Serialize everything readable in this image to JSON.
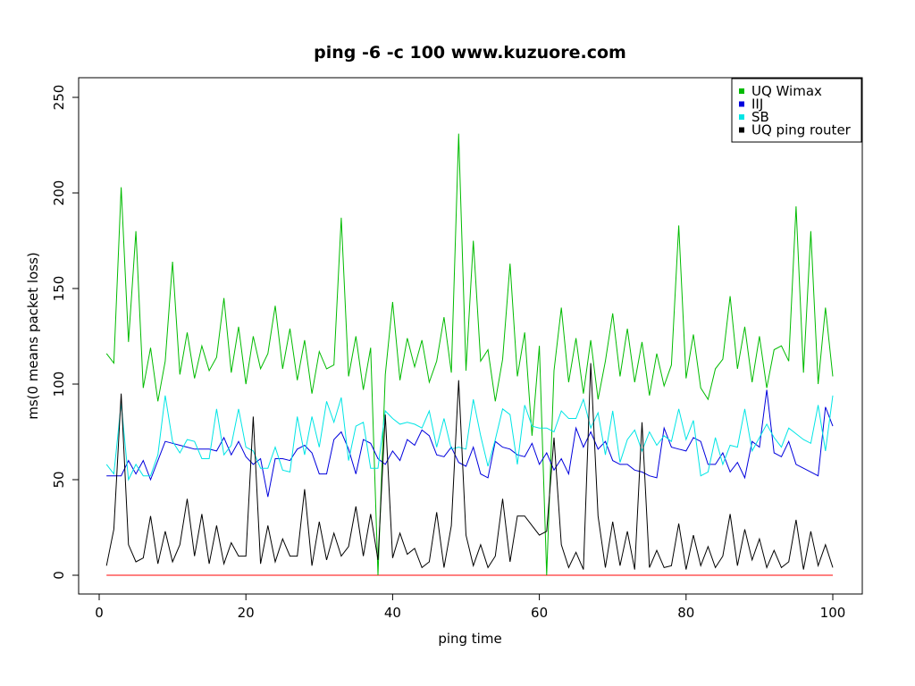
{
  "chart_data": {
    "type": "line",
    "title": "ping -6 -c 100 www.kuzuore.com",
    "xlabel": "ping time",
    "ylabel": "ms(0 means packet loss)",
    "xlim": [
      0,
      100
    ],
    "ylim": [
      0,
      250
    ],
    "x_ticks": [
      0,
      20,
      40,
      60,
      80,
      100
    ],
    "y_ticks": [
      0,
      50,
      100,
      150,
      200,
      250
    ],
    "grid": false,
    "legend_position": "top-right",
    "series": [
      {
        "name": "UQ Wimax",
        "color": "#00bb00",
        "values": [
          116,
          111,
          203,
          122,
          180,
          98,
          119,
          91,
          112,
          164,
          105,
          127,
          103,
          120,
          107,
          114,
          145,
          106,
          130,
          100,
          125,
          108,
          116,
          141,
          108,
          129,
          102,
          123,
          95,
          117,
          108,
          110,
          187,
          104,
          125,
          97,
          119,
          0,
          105,
          143,
          102,
          124,
          109,
          123,
          101,
          112,
          135,
          106,
          231,
          107,
          175,
          112,
          118,
          91,
          113,
          163,
          104,
          127,
          73,
          120,
          0,
          107,
          140,
          101,
          124,
          95,
          123,
          92,
          112,
          137,
          104,
          129,
          101,
          122,
          94,
          116,
          99,
          110,
          183,
          103,
          126,
          98,
          92,
          108,
          113,
          146,
          108,
          130,
          101,
          125,
          98,
          118,
          120,
          112,
          193,
          106,
          180,
          100,
          140,
          104
        ]
      },
      {
        "name": "IIJ",
        "color": "#0000dd",
        "values": [
          52,
          52,
          52,
          60,
          53,
          60,
          50,
          60,
          70,
          69,
          68,
          67,
          66,
          66,
          66,
          65,
          72,
          63,
          70,
          62,
          58,
          61,
          41,
          61,
          61,
          60,
          66,
          68,
          64,
          53,
          53,
          71,
          75,
          66,
          53,
          71,
          69,
          61,
          58,
          65,
          60,
          71,
          68,
          76,
          73,
          63,
          62,
          67,
          59,
          57,
          67,
          53,
          51,
          70,
          67,
          66,
          63,
          62,
          69,
          58,
          64,
          55,
          61,
          53,
          77,
          67,
          75,
          66,
          70,
          60,
          58,
          58,
          55,
          54,
          52,
          51,
          77,
          67,
          66,
          65,
          72,
          70,
          58,
          58,
          64,
          54,
          59,
          51,
          70,
          67,
          97,
          64,
          62,
          70,
          58,
          56,
          54,
          52,
          88,
          78
        ]
      },
      {
        "name": "SB",
        "color": "#00e5e5",
        "values": [
          58,
          53,
          90,
          50,
          58,
          52,
          52,
          63,
          94,
          70,
          64,
          71,
          70,
          61,
          61,
          87,
          63,
          68,
          87,
          67,
          65,
          56,
          56,
          67,
          55,
          54,
          83,
          63,
          83,
          67,
          91,
          80,
          93,
          60,
          78,
          80,
          56,
          56,
          86,
          82,
          79,
          80,
          79,
          77,
          86,
          67,
          82,
          66,
          67,
          66,
          92,
          73,
          57,
          71,
          87,
          84,
          58,
          89,
          78,
          77,
          77,
          75,
          86,
          82,
          82,
          92,
          77,
          85,
          63,
          86,
          59,
          71,
          76,
          65,
          75,
          68,
          73,
          70,
          87,
          71,
          81,
          52,
          54,
          72,
          58,
          68,
          67,
          87,
          65,
          72,
          79,
          72,
          67,
          77,
          74,
          71,
          69,
          89,
          65,
          94
        ]
      },
      {
        "name": "UQ ping router",
        "color": "#000000",
        "values": [
          5,
          24,
          95,
          16,
          7,
          9,
          31,
          6,
          23,
          7,
          16,
          40,
          10,
          32,
          6,
          26,
          6,
          17,
          10,
          10,
          83,
          6,
          26,
          7,
          19,
          10,
          10,
          45,
          5,
          28,
          8,
          22,
          10,
          15,
          36,
          10,
          32,
          8,
          84,
          9,
          22,
          11,
          14,
          4,
          7,
          33,
          4,
          26,
          102,
          21,
          5,
          16,
          4,
          10,
          40,
          7,
          31,
          31,
          26,
          21,
          23,
          72,
          16,
          4,
          12,
          3,
          111,
          31,
          4,
          28,
          5,
          23,
          3,
          80,
          4,
          13,
          4,
          5,
          27,
          3,
          21,
          5,
          15,
          4,
          10,
          32,
          5,
          24,
          8,
          19,
          4,
          13,
          4,
          7,
          29,
          3,
          23,
          5,
          16,
          4
        ]
      },
      {
        "name": "",
        "color": "#ff0000",
        "values": [
          0,
          0,
          0,
          0,
          0,
          0,
          0,
          0,
          0,
          0,
          0,
          0,
          0,
          0,
          0,
          0,
          0,
          0,
          0,
          0,
          0,
          0,
          0,
          0,
          0,
          0,
          0,
          0,
          0,
          0,
          0,
          0,
          0,
          0,
          0,
          0,
          0,
          0,
          0,
          0,
          0,
          0,
          0,
          0,
          0,
          0,
          0,
          0,
          0,
          0,
          0,
          0,
          0,
          0,
          0,
          0,
          0,
          0,
          0,
          0,
          0,
          0,
          0,
          0,
          0,
          0,
          0,
          0,
          0,
          0,
          0,
          0,
          0,
          0,
          0,
          0,
          0,
          0,
          0,
          0,
          0,
          0,
          0,
          0,
          0,
          0,
          0,
          0,
          0,
          0,
          0,
          0,
          0,
          0,
          0,
          0,
          0,
          0,
          0,
          0
        ]
      }
    ]
  }
}
